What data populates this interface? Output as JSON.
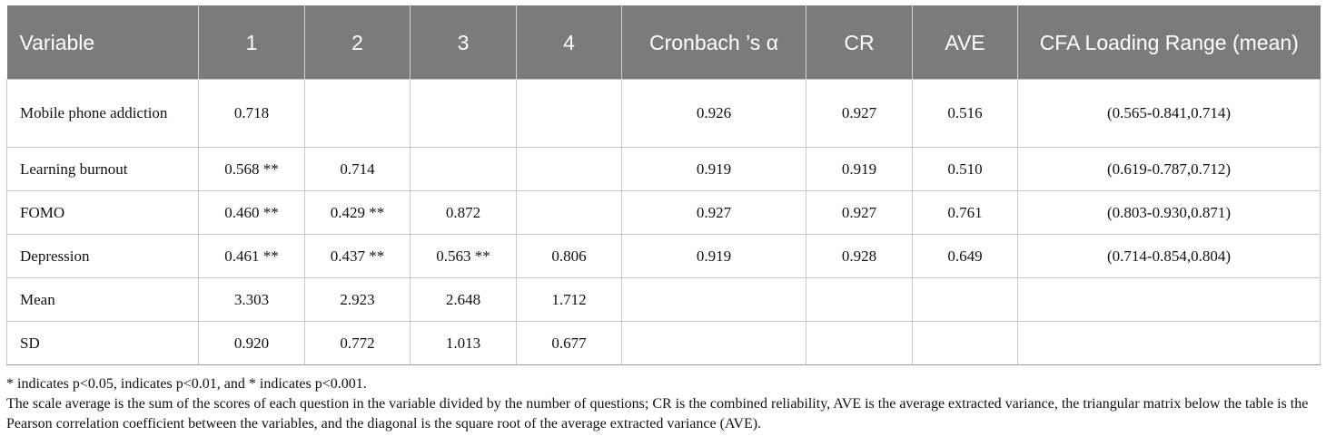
{
  "chart_data": {
    "type": "table",
    "columns": [
      "Variable",
      "1",
      "2",
      "3",
      "4",
      "Cronbach ’s α",
      "CR",
      "AVE",
      "CFA Loading Range (mean)"
    ],
    "rows": [
      {
        "cells": [
          "Mobile phone addiction",
          "0.718",
          "",
          "",
          "",
          "0.926",
          "0.927",
          "0.516",
          "(0.565-0.841,0.714)"
        ]
      },
      {
        "cells": [
          "Learning burnout",
          "0.568 **",
          "0.714",
          "",
          "",
          "0.919",
          "0.919",
          "0.510",
          "(0.619-0.787,0.712)"
        ]
      },
      {
        "cells": [
          "FOMO",
          "0.460 **",
          "0.429 **",
          "0.872",
          "",
          "0.927",
          "0.927",
          "0.761",
          "(0.803-0.930,0.871)"
        ]
      },
      {
        "cells": [
          "Depression",
          "0.461 **",
          "0.437 **",
          "0.563 **",
          "0.806",
          "0.919",
          "0.928",
          "0.649",
          "(0.714-0.854,0.804)"
        ]
      },
      {
        "cells": [
          "Mean",
          "3.303",
          "2.923",
          "2.648",
          "1.712",
          "",
          "",
          "",
          ""
        ]
      },
      {
        "cells": [
          "SD",
          "0.920",
          "0.772",
          "1.013",
          "0.677",
          "",
          "",
          "",
          ""
        ]
      }
    ],
    "notes": [
      "* indicates p<0.05, indicates p<0.01, and * indicates p<0.001.",
      "The scale average is the sum of the scores of each question in the variable divided by the number of questions; CR is the combined reliability, AVE is the average extracted variance, the triangular matrix below the table is the Pearson correlation coefficient between the variables, and the diagonal is the square root of the average extracted variance (AVE)."
    ]
  }
}
